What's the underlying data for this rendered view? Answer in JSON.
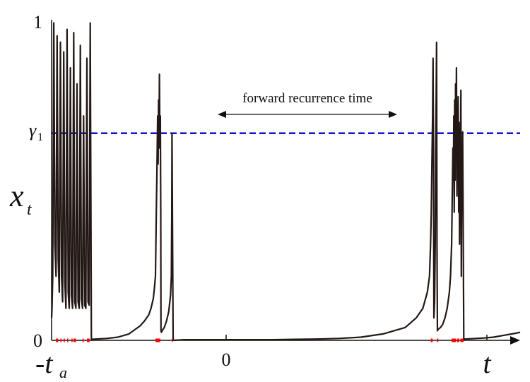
{
  "chart_data": {
    "type": "line",
    "ylabel": "x",
    "ylabel_subscript": "t",
    "ylim": [
      0,
      1
    ],
    "y_ticks": [
      "0",
      "1"
    ],
    "x_ticks": {
      "start": "-t",
      "start_subscript": "a",
      "zero": "0",
      "end": "t"
    },
    "threshold": {
      "label": "γ",
      "subscript": "1",
      "value": 0.646,
      "color": "#0000cc",
      "style": "dashed"
    },
    "annotation": "forward recurrence time",
    "series_color": "#231815",
    "mark_color": "#ff0000",
    "series": [
      {
        "x": [
          -1.0,
          -0.998,
          -0.995,
          -0.99,
          -0.985,
          -0.98,
          -0.975,
          -0.97,
          -0.965,
          -0.96,
          -0.955,
          -0.95,
          -0.945,
          -0.94,
          -0.935,
          -0.93,
          -0.925,
          -0.92,
          -0.915,
          -0.91,
          -0.905,
          -0.9,
          -0.895,
          -0.89,
          -0.885,
          -0.88,
          -0.875,
          -0.87,
          -0.865,
          -0.86,
          -0.855,
          -0.85,
          -0.845,
          -0.84,
          -0.835,
          -0.83,
          -0.825,
          -0.82,
          -0.8,
          -0.75,
          -0.7,
          -0.65,
          -0.6,
          -0.58,
          -0.56,
          -0.55,
          -0.54,
          -0.535,
          -0.53,
          -0.528,
          -0.526,
          -0.524,
          -0.522,
          -0.52,
          -0.518,
          -0.516,
          -0.514,
          -0.512,
          -0.51,
          -0.508,
          -0.506,
          -0.505,
          -0.503,
          -0.5,
          -0.49,
          -0.48,
          -0.47,
          -0.462,
          -0.458,
          -0.456,
          -0.455,
          -0.45,
          -0.4,
          -0.3,
          -0.2,
          -0.1,
          0.0,
          0.1,
          0.2,
          0.3,
          0.4,
          0.5,
          0.6,
          0.65,
          0.68,
          0.7,
          0.71,
          0.715,
          0.718,
          0.72,
          0.722,
          0.724,
          0.726,
          0.728,
          0.73,
          0.733,
          0.736,
          0.738,
          0.74,
          0.742,
          0.744,
          0.746,
          0.75,
          0.76,
          0.77,
          0.78,
          0.79,
          0.8,
          0.805,
          0.81,
          0.812,
          0.814,
          0.816,
          0.818,
          0.82,
          0.822,
          0.824,
          0.826,
          0.828,
          0.83,
          0.832,
          0.834,
          0.836,
          0.838,
          0.84,
          0.842,
          0.844,
          0.846,
          0.848,
          0.85,
          0.852,
          0.854,
          0.856,
          0.858,
          0.86,
          0.865,
          0.87,
          0.9,
          0.95,
          1.0,
          1.05,
          1.1,
          1.12
        ],
        "y": [
          0.07,
          0.1,
          0.2,
          0.99,
          0.3,
          0.2,
          0.95,
          0.25,
          0.15,
          0.93,
          0.2,
          0.12,
          0.9,
          0.18,
          0.1,
          0.97,
          0.15,
          0.1,
          0.85,
          0.14,
          0.1,
          0.96,
          0.12,
          0.1,
          0.8,
          0.12,
          0.1,
          0.92,
          0.13,
          0.1,
          0.7,
          0.11,
          0.1,
          0.88,
          0.12,
          0.11,
          0.99,
          0.003,
          0.004,
          0.006,
          0.01,
          0.02,
          0.045,
          0.06,
          0.08,
          0.1,
          0.13,
          0.16,
          0.2,
          0.3,
          0.4,
          0.5,
          0.6,
          0.7,
          0.55,
          0.75,
          0.6,
          0.83,
          0.62,
          0.7,
          0.4,
          0.03,
          0.025,
          0.03,
          0.04,
          0.06,
          0.09,
          0.14,
          0.2,
          0.4,
          0.645,
          0.0,
          0.002,
          0.002,
          0.002,
          0.002,
          0.002,
          0.003,
          0.004,
          0.006,
          0.01,
          0.02,
          0.04,
          0.07,
          0.1,
          0.15,
          0.2,
          0.3,
          0.4,
          0.5,
          0.6,
          0.7,
          0.88,
          0.6,
          0.07,
          0.12,
          0.3,
          0.6,
          0.75,
          0.93,
          0.3,
          0.03,
          0.035,
          0.04,
          0.05,
          0.07,
          0.1,
          0.15,
          0.2,
          0.3,
          0.4,
          0.5,
          0.6,
          0.5,
          0.7,
          0.4,
          0.75,
          0.5,
          0.8,
          0.6,
          0.85,
          0.45,
          0.7,
          0.55,
          0.76,
          0.4,
          0.68,
          0.3,
          0.62,
          0.5,
          0.78,
          0.2,
          0.6,
          0.45,
          0.65,
          0.003,
          0.004,
          0.005,
          0.007,
          0.01,
          0.016,
          0.022,
          0.025
        ]
      }
    ],
    "marks_on_axis": [
      {
        "from": -0.98,
        "to": -0.97
      },
      {
        "from": -0.96,
        "to": -0.955
      },
      {
        "from": -0.945,
        "to": -0.94
      },
      {
        "from": -0.93,
        "to": -0.925
      },
      {
        "from": -0.91,
        "to": -0.905
      },
      {
        "from": -0.9,
        "to": -0.89
      },
      {
        "from": -0.86,
        "to": -0.855
      },
      {
        "from": -0.84,
        "to": -0.828
      },
      {
        "from": -0.53,
        "to": -0.508
      },
      {
        "from": -0.456,
        "to": -0.452
      },
      {
        "from": 0.716,
        "to": 0.724
      },
      {
        "from": 0.744,
        "to": 0.75
      },
      {
        "from": 0.81,
        "to": 0.83
      },
      {
        "from": 0.835,
        "to": 0.845
      },
      {
        "from": 0.85,
        "to": 0.864
      }
    ]
  }
}
